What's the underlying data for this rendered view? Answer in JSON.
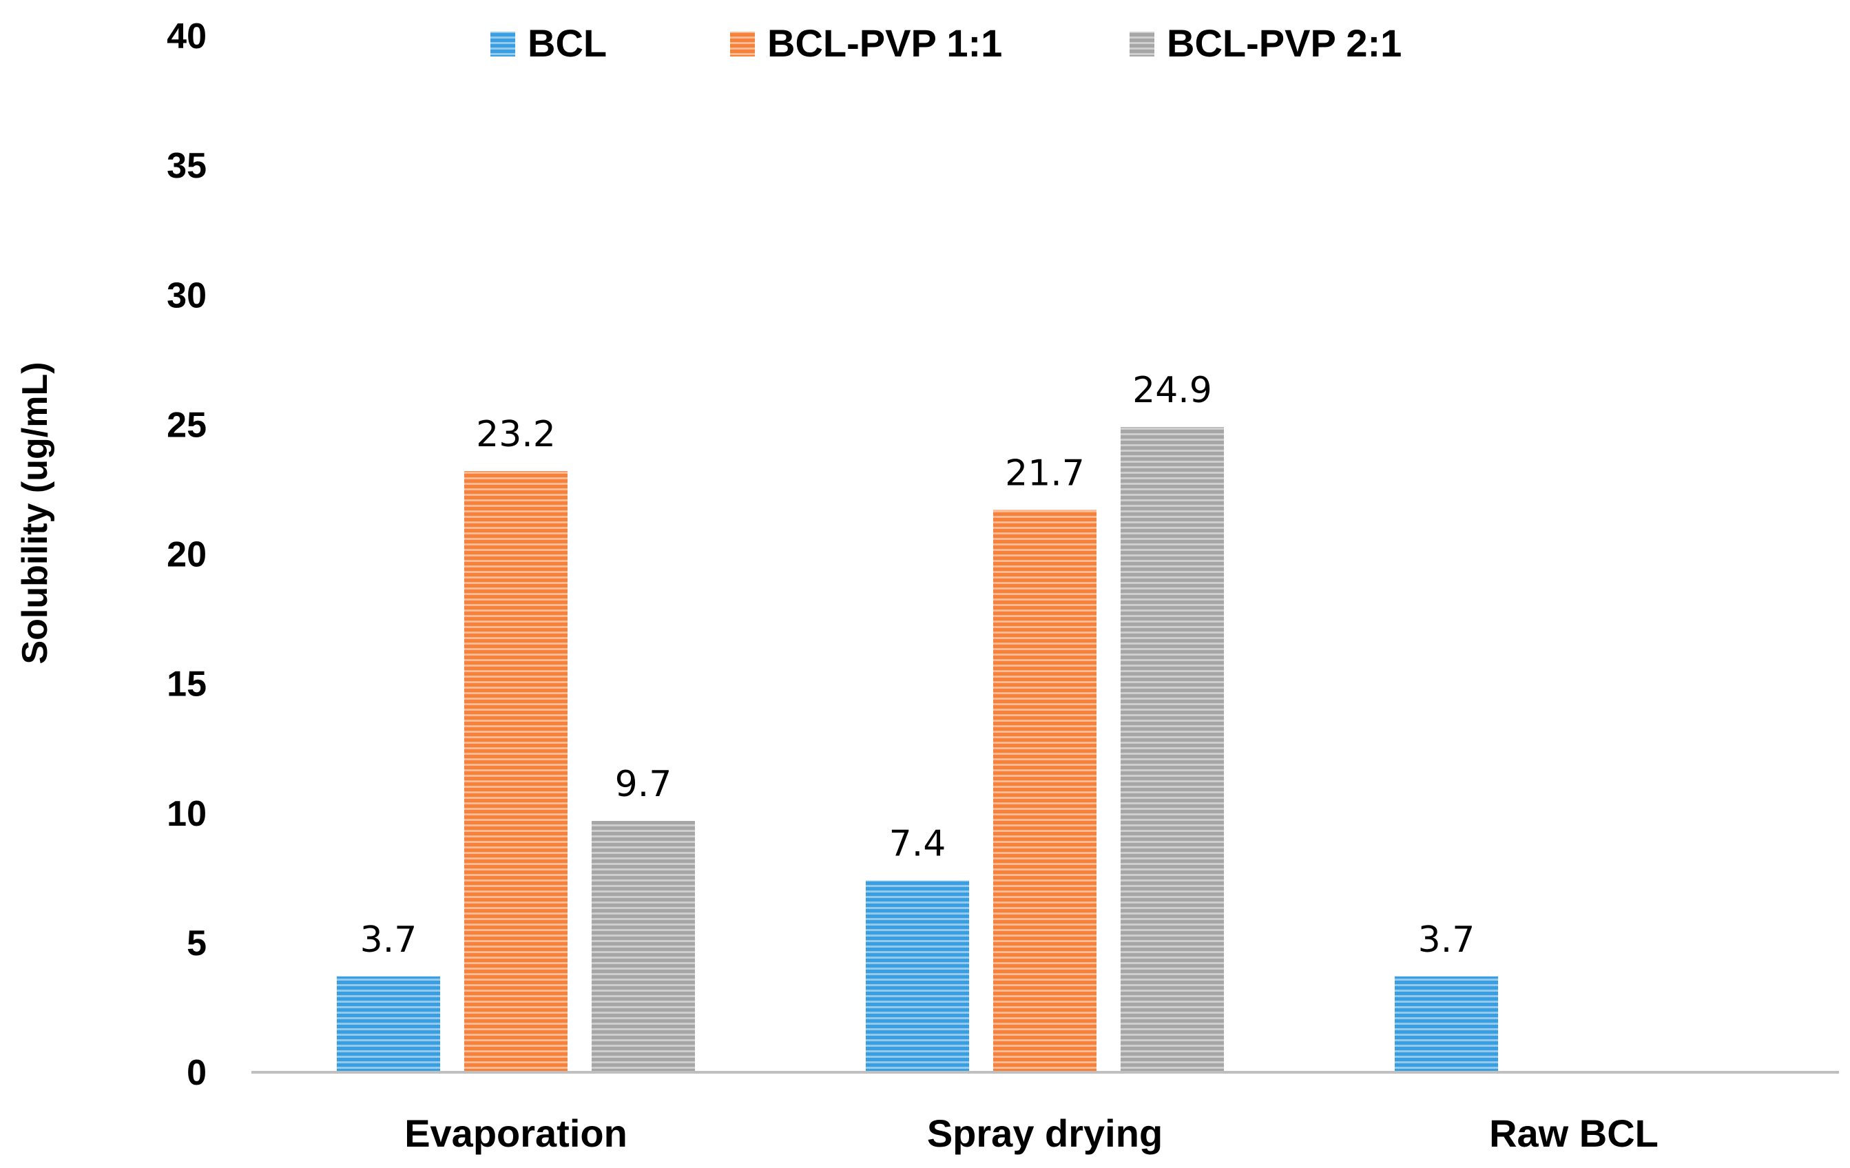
{
  "chart_data": {
    "type": "bar",
    "title": "",
    "xlabel": "",
    "ylabel": "Solubility (ug/mL)",
    "ylim": [
      0,
      40
    ],
    "yticks": [
      0,
      5,
      10,
      15,
      20,
      25,
      30,
      35,
      40
    ],
    "grid": false,
    "legend_position": "top",
    "categories": [
      "Evaporation",
      "Spray drying",
      "Raw BCL"
    ],
    "series": [
      {
        "name": "BCL",
        "color": "#3a9ee0",
        "values": [
          3.7,
          7.4,
          3.7
        ],
        "labels": [
          "3.7",
          "7.4",
          "3.7"
        ]
      },
      {
        "name": "BCL-PVP 1:1",
        "color": "#f5813a",
        "values": [
          23.2,
          21.7,
          null
        ],
        "labels": [
          "23.2",
          "21.7",
          ""
        ]
      },
      {
        "name": "BCL-PVP 2:1",
        "color": "#a6a6a6",
        "values": [
          9.7,
          24.9,
          null
        ],
        "labels": [
          "9.7",
          "24.9",
          ""
        ]
      }
    ]
  }
}
